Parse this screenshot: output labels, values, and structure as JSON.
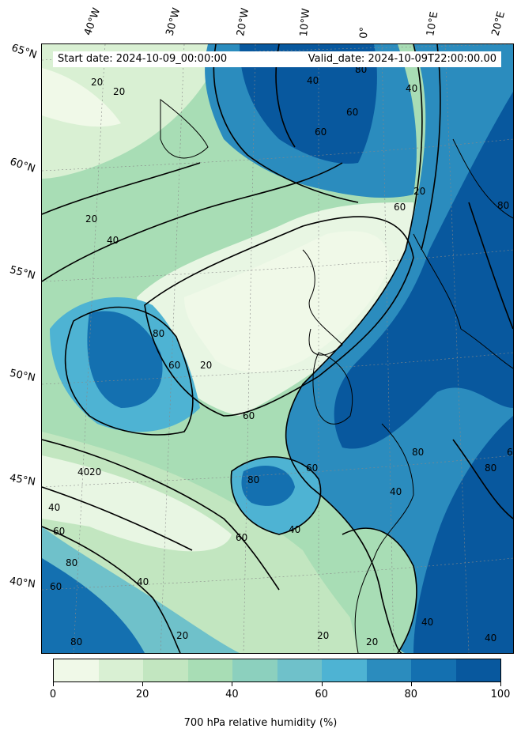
{
  "info": {
    "start_date": "Start date: 2024-10-09_00:00:00",
    "valid_date": "Valid_date: 2024-10-09T22:00:00.00"
  },
  "latitude_labels": [
    "65°N",
    "60°N",
    "55°N",
    "50°N",
    "45°N",
    "40°N"
  ],
  "longitude_labels": [
    "40°W",
    "30°W",
    "20°W",
    "10°W",
    "0°",
    "10°E",
    "20°E"
  ],
  "contour_labels": [
    "20",
    "20",
    "80",
    "40",
    "40",
    "60",
    "60",
    "20",
    "20",
    "40",
    "60",
    "80",
    "20",
    "40",
    "80",
    "60",
    "60",
    "20",
    "60",
    "80",
    "80",
    "40",
    "60",
    "40",
    "60",
    "40",
    "80",
    "60",
    "80",
    "60",
    "40",
    "80",
    "20",
    "20",
    "40",
    "20",
    "40"
  ],
  "colorbar": {
    "title": "700 hPa relative humidity (%)",
    "tick_labels": [
      "0",
      "20",
      "40",
      "60",
      "80",
      "100"
    ],
    "colors": [
      "#f0f9e8",
      "#d9f0d3",
      "#c2e6c0",
      "#a8ddb5",
      "#8cd0be",
      "#6fc1ca",
      "#4eb3d3",
      "#2b8cbe",
      "#1470b0",
      "#08589e"
    ]
  }
}
